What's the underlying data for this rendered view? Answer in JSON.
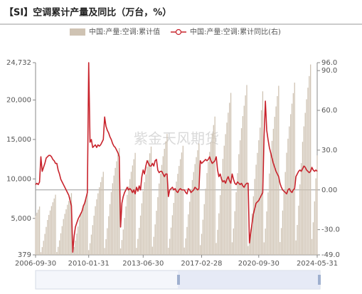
{
  "chart_data": {
    "type": "bar-line",
    "title": "【SI】空调累计产量及同比（万台，%）",
    "watermark": "紫金天风期货",
    "categories": [
      "2006-09-30",
      null,
      null,
      null,
      null,
      null,
      null,
      null,
      null,
      null,
      null,
      null,
      null,
      null,
      null,
      null,
      null,
      null,
      null,
      null,
      null,
      null,
      null,
      null,
      null,
      null,
      null,
      null,
      null,
      null,
      null,
      null,
      null,
      null,
      null,
      null,
      null,
      null,
      null,
      null,
      "2010-01-31",
      null,
      null,
      null,
      null,
      null,
      null,
      null,
      null,
      null,
      null,
      null,
      null,
      null,
      null,
      null,
      null,
      null,
      null,
      null,
      null,
      null,
      null,
      null,
      null,
      null,
      null,
      null,
      null,
      null,
      null,
      null,
      null,
      null,
      null,
      null,
      null,
      null,
      null,
      null,
      null,
      "2013-06-30",
      null,
      null,
      null,
      null,
      null,
      null,
      null,
      null,
      null,
      null,
      null,
      null,
      null,
      null,
      null,
      null,
      null,
      null,
      null,
      null,
      null,
      null,
      null,
      null,
      null,
      null,
      null,
      null,
      null,
      null,
      null,
      null,
      null,
      null,
      null,
      null,
      null,
      null,
      null,
      null,
      null,
      null,
      null,
      "2017-02-28",
      null,
      null,
      null,
      null,
      null,
      null,
      null,
      null,
      null,
      null,
      null,
      null,
      null,
      null,
      null,
      null,
      null,
      null,
      null,
      null,
      null,
      null,
      null,
      null,
      null,
      null,
      null,
      null,
      null,
      null,
      null,
      null,
      null,
      null,
      null,
      null,
      null,
      null,
      null,
      null,
      null,
      null,
      "2020-09-30",
      null,
      null,
      null,
      null,
      null,
      null,
      null,
      null,
      null,
      null,
      null,
      null,
      null,
      null,
      null,
      null,
      null,
      null,
      null,
      null,
      null,
      null,
      null,
      null,
      null,
      null,
      null,
      null,
      null,
      null,
      null,
      null,
      null,
      null,
      null,
      null,
      null,
      null,
      null,
      null,
      null,
      null,
      null,
      "2024-05-31"
    ],
    "series": [
      {
        "name": "中国:产量:空调:累计值",
        "color": "#cfc3b3",
        "values": [
          5330,
          5720,
          6110,
          6500,
          720,
          1360,
          2160,
          3040,
          3920,
          4800,
          5440,
          6000,
          6560,
          7040,
          7520,
          8000,
          738,
          1394,
          2214,
          3116,
          4018,
          4920,
          5576,
          6150,
          6724,
          7216,
          7708,
          8200,
          729,
          1377,
          2187,
          3078,
          3969,
          4860,
          5508,
          6075,
          6642,
          7128,
          7614,
          8100,
          981,
          1853,
          2943,
          4142,
          5341,
          6540,
          7412,
          8175,
          8938,
          9592,
          10246,
          10900,
          1251,
          2363,
          3753,
          5282,
          6811,
          8340,
          9452,
          10425,
          11398,
          12232,
          13066,
          13900,
          1197,
          2261,
          3591,
          5054,
          6517,
          7980,
          9044,
          9975,
          10906,
          11704,
          12502,
          13300,
          1269,
          2397,
          3807,
          5358,
          6909,
          8460,
          9588,
          10575,
          11562,
          12408,
          13254,
          14100,
          1413,
          2669,
          4239,
          5966,
          7693,
          9420,
          10676,
          11775,
          12874,
          13816,
          14758,
          15700,
          1278,
          2414,
          3834,
          5396,
          6958,
          8520,
          9656,
          10650,
          11644,
          12496,
          13348,
          14200,
          1305,
          2465,
          3915,
          5510,
          7105,
          8700,
          9860,
          10875,
          11890,
          12760,
          13630,
          14500,
          1611,
          3043,
          4833,
          6802,
          8771,
          10740,
          12172,
          13425,
          14678,
          15752,
          16826,
          17900,
          1881,
          3553,
          5643,
          7942,
          10241,
          12540,
          14212,
          15675,
          17138,
          18392,
          19646,
          20900,
          1971,
          3723,
          5913,
          8322,
          10731,
          13140,
          14892,
          16425,
          17958,
          19272,
          20586,
          21900,
          1500,
          2300,
          3600,
          5600,
          7800,
          10000,
          11800,
          13300,
          14900,
          16500,
          18700,
          21100,
          1962,
          3706,
          5886,
          8284,
          10682,
          13080,
          14824,
          16350,
          17876,
          19184,
          20492,
          21800,
          1998,
          3774,
          5994,
          8436,
          10878,
          13320,
          15096,
          16650,
          18204,
          19536,
          20868,
          22200,
          2205,
          4165,
          6615,
          9310,
          12005,
          14700,
          16660,
          18375,
          20090,
          21560,
          23030,
          24500,
          2385,
          4505,
          7155,
          10070,
          12985
        ]
      },
      {
        "name": "中国:产量:空调:累计同比(右)",
        "color": "#c8232c",
        "axis": "y2",
        "values": [
          4,
          5,
          4,
          6,
          25,
          14,
          17,
          20,
          24,
          25,
          26,
          26,
          25,
          23,
          22,
          20,
          20,
          15,
          12,
          8,
          6,
          4,
          2,
          0,
          -2,
          -4,
          -8,
          -12,
          -47,
          -35,
          -28,
          -25,
          -22,
          -20,
          -18,
          -16,
          -12,
          -10,
          -6,
          -2,
          96,
          36,
          38,
          32,
          33,
          34,
          32,
          34,
          33,
          34,
          36,
          38,
          55,
          48,
          45,
          43,
          40,
          38,
          35,
          33,
          32,
          30,
          28,
          25,
          -28,
          -10,
          -5,
          -2,
          0,
          2,
          0,
          1,
          0,
          -2,
          0,
          -3,
          2,
          -1,
          3,
          0,
          10,
          15,
          12,
          18,
          22,
          20,
          18,
          18,
          20,
          18,
          22,
          23,
          15,
          13,
          14,
          14,
          12,
          10,
          12,
          12,
          -5,
          0,
          1,
          2,
          0,
          1,
          -1,
          -2,
          0,
          1,
          0,
          0,
          0,
          -2,
          -3,
          1,
          0,
          -2,
          -1,
          0,
          2,
          1,
          0,
          1,
          22,
          20,
          21,
          22,
          23,
          22,
          23,
          25,
          22,
          20,
          21,
          22,
          25,
          15,
          10,
          12,
          8,
          6,
          7,
          5,
          8,
          10,
          7,
          5,
          12,
          8,
          5,
          4,
          6,
          5,
          4,
          5,
          3,
          2,
          4,
          5,
          5,
          -40,
          -32,
          -25,
          -18,
          -14,
          -10,
          -9,
          -8,
          -6,
          -4,
          -2,
          40,
          67,
          45,
          38,
          32,
          28,
          24,
          20,
          17,
          14,
          12,
          10,
          5,
          2,
          0,
          -1,
          -2,
          -3,
          0,
          1,
          -1,
          -2,
          0,
          1,
          10,
          12,
          14,
          15,
          14,
          16,
          18,
          17,
          15,
          14,
          13,
          14,
          17,
          15,
          14,
          15,
          14
        ]
      }
    ],
    "ylim": [
      379,
      24732
    ],
    "yticks": [
      379,
      {
        "value": 5000,
        "label": "5,000"
      },
      {
        "value": 10000,
        "label": "10,000"
      },
      {
        "value": 15000,
        "label": "15,000"
      },
      {
        "value": 20000,
        "label": "20,000"
      },
      {
        "value": 24732,
        "label": "24,732"
      }
    ],
    "y2lim": [
      -49,
      96
    ],
    "y2ticks": [
      {
        "value": -49,
        "label": "-49.0"
      },
      {
        "value": -30,
        "label": "-30.0"
      },
      {
        "value": 0,
        "label": "0.00"
      },
      {
        "value": 30,
        "label": "30.0"
      },
      {
        "value": 60,
        "label": "60.0"
      },
      {
        "value": 90,
        "label": "90.0"
      },
      {
        "value": 96,
        "label": "96.0"
      }
    ],
    "grid": false,
    "legend": "top"
  }
}
